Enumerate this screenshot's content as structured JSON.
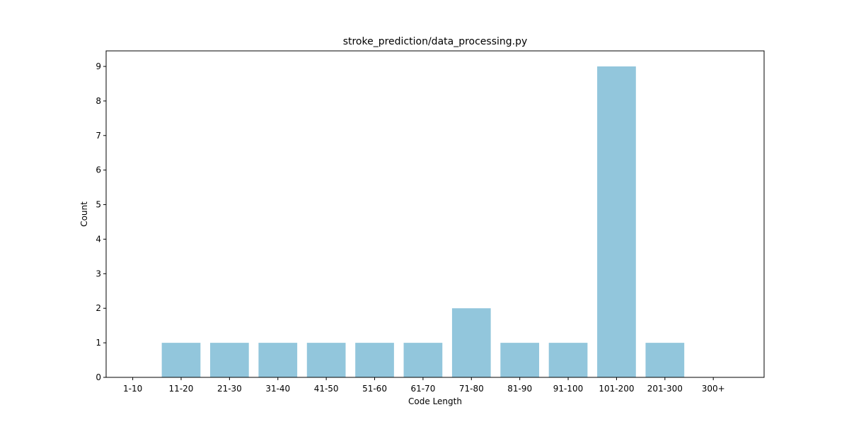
{
  "chart_data": {
    "type": "bar",
    "title": "stroke_prediction/data_processing.py",
    "xlabel": "Code Length",
    "ylabel": "Count",
    "categories": [
      "1-10",
      "11-20",
      "21-30",
      "31-40",
      "41-50",
      "51-60",
      "61-70",
      "71-80",
      "81-90",
      "91-100",
      "101-200",
      "201-300",
      "300+"
    ],
    "values": [
      0,
      1,
      1,
      1,
      1,
      1,
      1,
      2,
      1,
      1,
      9,
      1,
      0
    ],
    "ylim": [
      0,
      9.45
    ],
    "yticks": [
      "0",
      "1",
      "2",
      "3",
      "4",
      "5",
      "6",
      "7",
      "8",
      "9"
    ],
    "bar_color": "#92c6dc",
    "grid": false,
    "legend": "none"
  }
}
